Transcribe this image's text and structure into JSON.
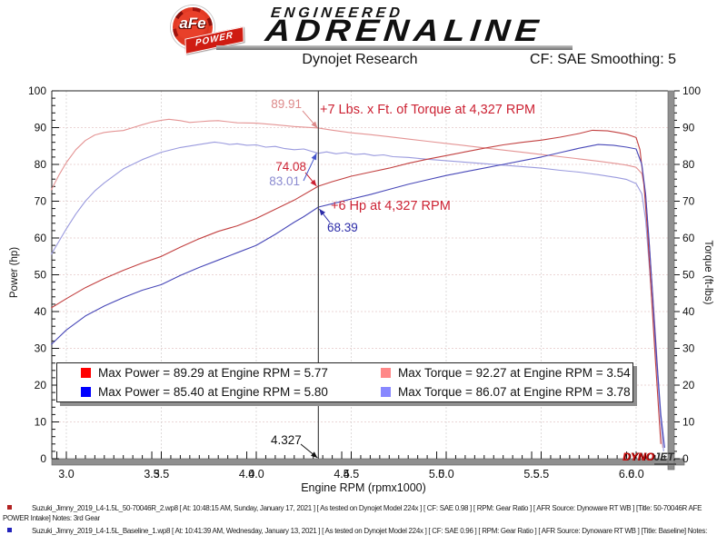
{
  "logo": {
    "badge_text": "aFe",
    "badge_banner": "POWER",
    "line1": "ENGINEERED",
    "line2": "ADRENALINE"
  },
  "header": {
    "title": "Dynojet Research",
    "smoothing": "CF: SAE Smoothing: 5"
  },
  "annotations": {
    "torque_gain": "+7 Lbs. x Ft. of Torque at 4,327 RPM",
    "hp_gain": "+6 Hp at 4,327 RPM"
  },
  "legend": {
    "items": [
      {
        "color": "#ff0000",
        "label": "Max Power = 89.29 at Engine RPM = 5.77"
      },
      {
        "color": "#ff8888",
        "label": "Max Torque = 92.27 at Engine RPM = 3.54"
      },
      {
        "color": "#0000ff",
        "label": "Max Power = 85.40 at Engine RPM = 5.80"
      },
      {
        "color": "#8888ff",
        "label": "Max Torque = 86.07 at Engine RPM = 3.78"
      }
    ]
  },
  "watermark": {
    "part1": "DYNO",
    "part2": "JET."
  },
  "footnotes": [
    {
      "color": "#b22222",
      "text": "Suzuki_Jimny_2019_L4-1.5L_50-70046R_2.wp8 [ At: 10:48:15 AM, Sunday, January 17, 2021 ] [ As tested on Dynojet Model 224x ] [ CF: SAE 0.98 ] [ RPM: Gear Ratio ] [ AFR Source: Dynoware RT WB ] [Title: 50-70046R AFE POWER Intake]  Notes: 3rd Gear"
    },
    {
      "color": "#2222bb",
      "text": "Suzuki_Jimny_2019_L4-1.5L_Baseline_1.wp8 [ At: 10:41:39 AM, Wednesday, January 13, 2021 ] [ As tested on Dynojet Model 224x ] [ CF: SAE 0.96 ] [ RPM: Gear Ratio ] [ AFR Source: Dynoware RT WB ] [Title: Baseline]  Notes:"
    }
  ],
  "chart_data": {
    "type": "line",
    "title": "Dynojet Research",
    "xlabel": "Engine RPM (rpmx1000)",
    "ylabel_left": "Power (hp)",
    "ylabel_right": "Torque (ft-lbs)",
    "xlim": [
      2.92,
      6.17
    ],
    "ylim": [
      0,
      100
    ],
    "x_tick_major": 0.5,
    "x_tick_minor": 0.05,
    "x_label_min": 3.0,
    "x_label_max": 6.0,
    "y_tick_major": 10,
    "y_tick_minor": 2,
    "grid": true,
    "legend_position": "bottom-inside",
    "cursor": {
      "rpm": 4.327,
      "label": "4.327",
      "readouts": [
        {
          "series": "afe-torque",
          "value": 89.91,
          "label": "89.91"
        },
        {
          "series": "afe-power",
          "value": 74.08,
          "label": "74.08"
        },
        {
          "series": "baseline-torque",
          "value": 83.01,
          "label": "83.01"
        },
        {
          "series": "baseline-power",
          "value": 68.39,
          "label": "68.39"
        }
      ]
    },
    "series": [
      {
        "name": "afe-torque",
        "unit": "ft-lbs",
        "color": "#e49494",
        "max": {
          "value": 92.27,
          "rpm": 3.54
        },
        "points": [
          [
            2.92,
            73
          ],
          [
            2.96,
            77
          ],
          [
            3.0,
            80.5
          ],
          [
            3.05,
            84
          ],
          [
            3.1,
            86.5
          ],
          [
            3.15,
            88
          ],
          [
            3.2,
            88.7
          ],
          [
            3.25,
            89
          ],
          [
            3.3,
            89.2
          ],
          [
            3.35,
            90
          ],
          [
            3.4,
            90.8
          ],
          [
            3.45,
            91.5
          ],
          [
            3.5,
            92
          ],
          [
            3.54,
            92.27
          ],
          [
            3.6,
            91.9
          ],
          [
            3.65,
            91.4
          ],
          [
            3.7,
            91.6
          ],
          [
            3.75,
            91.8
          ],
          [
            3.8,
            91.9
          ],
          [
            3.85,
            91.6
          ],
          [
            3.9,
            91.3
          ],
          [
            4.0,
            91.2
          ],
          [
            4.1,
            90.8
          ],
          [
            4.2,
            90.3
          ],
          [
            4.327,
            89.91
          ],
          [
            4.4,
            89.3
          ],
          [
            4.5,
            88.6
          ],
          [
            4.6,
            88.1
          ],
          [
            4.7,
            87.5
          ],
          [
            4.8,
            86.9
          ],
          [
            4.9,
            86.3
          ],
          [
            5.0,
            85.7
          ],
          [
            5.1,
            85.1
          ],
          [
            5.2,
            84.5
          ],
          [
            5.3,
            83.9
          ],
          [
            5.4,
            83.3
          ],
          [
            5.5,
            82.7
          ],
          [
            5.6,
            82.1
          ],
          [
            5.7,
            81.5
          ],
          [
            5.8,
            80.9
          ],
          [
            5.9,
            80.2
          ],
          [
            5.95,
            79.8
          ],
          [
            6.0,
            79.2
          ],
          [
            6.03,
            77.5
          ],
          [
            6.05,
            72
          ],
          [
            6.07,
            58
          ],
          [
            6.09,
            43
          ],
          [
            6.11,
            27
          ],
          [
            6.13,
            10
          ],
          [
            6.14,
            3
          ]
        ]
      },
      {
        "name": "baseline-torque",
        "unit": "ft-lbs",
        "color": "#9a9ade",
        "max": {
          "value": 86.07,
          "rpm": 3.78
        },
        "points": [
          [
            2.92,
            55.5
          ],
          [
            2.96,
            59
          ],
          [
            3.0,
            62.5
          ],
          [
            3.05,
            66.5
          ],
          [
            3.1,
            70
          ],
          [
            3.15,
            72.8
          ],
          [
            3.2,
            75
          ],
          [
            3.3,
            78.8
          ],
          [
            3.4,
            81.3
          ],
          [
            3.5,
            83.3
          ],
          [
            3.6,
            84.6
          ],
          [
            3.7,
            85.4
          ],
          [
            3.78,
            86.07
          ],
          [
            3.82,
            85.8
          ],
          [
            3.86,
            85.4
          ],
          [
            3.9,
            85.6
          ],
          [
            3.95,
            85.2
          ],
          [
            4.0,
            85.3
          ],
          [
            4.05,
            84.7
          ],
          [
            4.1,
            84.9
          ],
          [
            4.15,
            84.3
          ],
          [
            4.2,
            84
          ],
          [
            4.25,
            84.2
          ],
          [
            4.327,
            83.01
          ],
          [
            4.37,
            83.4
          ],
          [
            4.42,
            82.9
          ],
          [
            4.47,
            83.2
          ],
          [
            4.52,
            82.7
          ],
          [
            4.57,
            82.9
          ],
          [
            4.62,
            82.4
          ],
          [
            4.67,
            82.6
          ],
          [
            4.72,
            82.1
          ],
          [
            4.8,
            81.9
          ],
          [
            4.9,
            81.4
          ],
          [
            5.0,
            81
          ],
          [
            5.1,
            80.6
          ],
          [
            5.2,
            80.2
          ],
          [
            5.3,
            79.8
          ],
          [
            5.4,
            79.4
          ],
          [
            5.5,
            79
          ],
          [
            5.6,
            78.4
          ],
          [
            5.7,
            77.9
          ],
          [
            5.8,
            77.2
          ],
          [
            5.9,
            76.4
          ],
          [
            5.95,
            75.9
          ],
          [
            6.0,
            74.8
          ],
          [
            6.03,
            72
          ],
          [
            6.05,
            65
          ],
          [
            6.07,
            52
          ],
          [
            6.09,
            38
          ],
          [
            6.11,
            24
          ],
          [
            6.13,
            10
          ],
          [
            6.145,
            2
          ]
        ]
      },
      {
        "name": "afe-power",
        "unit": "hp",
        "color": "#c24040",
        "max": {
          "value": 89.29,
          "rpm": 5.77
        },
        "points": [
          [
            2.92,
            41
          ],
          [
            3.0,
            43.5
          ],
          [
            3.1,
            46.5
          ],
          [
            3.2,
            49
          ],
          [
            3.3,
            51.2
          ],
          [
            3.4,
            53.2
          ],
          [
            3.5,
            55
          ],
          [
            3.6,
            57.5
          ],
          [
            3.7,
            59.8
          ],
          [
            3.8,
            61.8
          ],
          [
            3.9,
            63.3
          ],
          [
            4.0,
            65.3
          ],
          [
            4.1,
            67.8
          ],
          [
            4.2,
            70.3
          ],
          [
            4.327,
            74.08
          ],
          [
            4.4,
            75.3
          ],
          [
            4.5,
            76.8
          ],
          [
            4.6,
            77.9
          ],
          [
            4.7,
            79
          ],
          [
            4.8,
            80.3
          ],
          [
            4.9,
            81.4
          ],
          [
            5.0,
            82.4
          ],
          [
            5.1,
            83.4
          ],
          [
            5.2,
            84.4
          ],
          [
            5.3,
            85.3
          ],
          [
            5.4,
            86
          ],
          [
            5.5,
            86.6
          ],
          [
            5.6,
            87.4
          ],
          [
            5.7,
            88.4
          ],
          [
            5.77,
            89.29
          ],
          [
            5.85,
            89.1
          ],
          [
            5.9,
            88.7
          ],
          [
            5.95,
            88.2
          ],
          [
            6.0,
            87.3
          ],
          [
            6.02,
            84
          ],
          [
            6.04,
            75
          ],
          [
            6.06,
            62
          ],
          [
            6.08,
            45
          ],
          [
            6.1,
            28
          ],
          [
            6.12,
            12
          ],
          [
            6.13,
            4
          ]
        ]
      },
      {
        "name": "baseline-power",
        "unit": "hp",
        "color": "#4848b8",
        "max": {
          "value": 85.4,
          "rpm": 5.8
        },
        "points": [
          [
            2.92,
            31
          ],
          [
            3.0,
            35
          ],
          [
            3.1,
            38.8
          ],
          [
            3.2,
            41.5
          ],
          [
            3.3,
            43.8
          ],
          [
            3.4,
            45.8
          ],
          [
            3.5,
            47.3
          ],
          [
            3.6,
            49.8
          ],
          [
            3.7,
            52
          ],
          [
            3.8,
            54
          ],
          [
            3.9,
            56
          ],
          [
            4.0,
            58
          ],
          [
            4.1,
            61
          ],
          [
            4.2,
            64.3
          ],
          [
            4.25,
            65.8
          ],
          [
            4.327,
            68.39
          ],
          [
            4.4,
            69.3
          ],
          [
            4.5,
            70.6
          ],
          [
            4.6,
            71.8
          ],
          [
            4.7,
            73.2
          ],
          [
            4.8,
            74.6
          ],
          [
            4.9,
            75.8
          ],
          [
            5.0,
            77
          ],
          [
            5.1,
            78
          ],
          [
            5.2,
            79
          ],
          [
            5.3,
            80
          ],
          [
            5.4,
            81
          ],
          [
            5.5,
            82
          ],
          [
            5.6,
            83.2
          ],
          [
            5.7,
            84.4
          ],
          [
            5.8,
            85.4
          ],
          [
            5.88,
            85.2
          ],
          [
            5.95,
            84.7
          ],
          [
            6.0,
            84.2
          ],
          [
            6.03,
            80
          ],
          [
            6.05,
            72
          ],
          [
            6.07,
            58
          ],
          [
            6.09,
            42
          ],
          [
            6.11,
            26
          ],
          [
            6.13,
            12
          ],
          [
            6.15,
            3
          ]
        ]
      }
    ]
  }
}
